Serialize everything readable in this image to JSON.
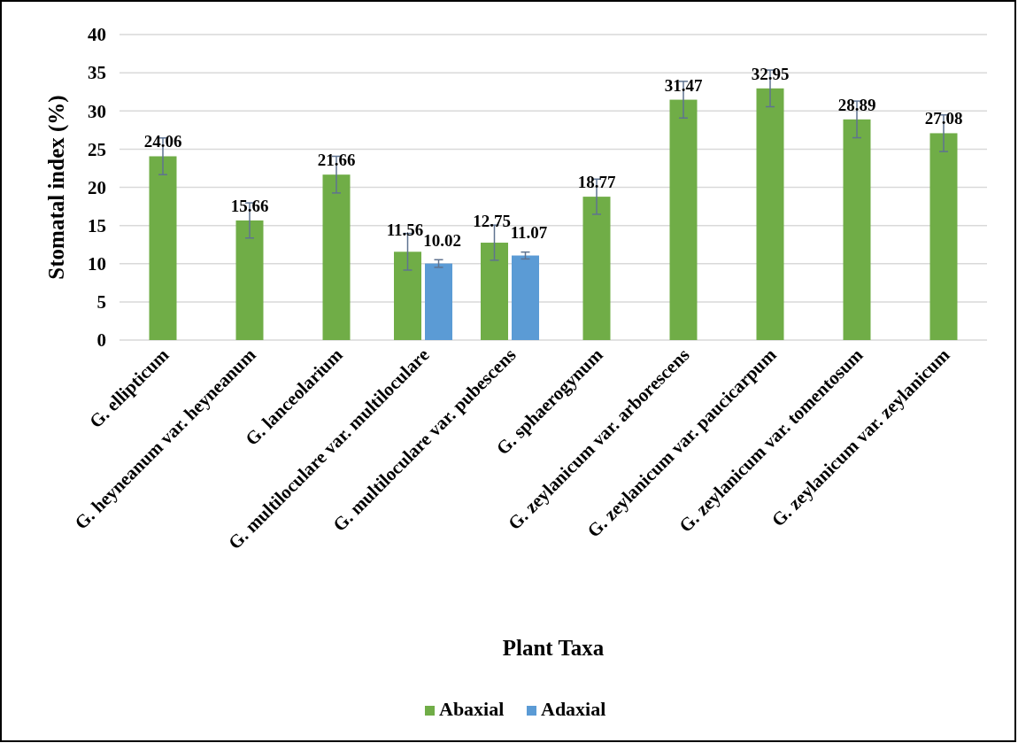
{
  "chart_data": {
    "type": "bar",
    "xlabel": "Plant Taxa",
    "ylabel": "Stomatal index (%)",
    "categories": [
      "G. ellipticum",
      "G. heyneanum var. heyneanum",
      "G. lanceolarium",
      "G. multiloculare var. multiloculare",
      "G. multiloculare var. pubescens",
      "G. sphaerogynum",
      "G. zeylanicum var. arborescens",
      "G. zeylanicum var. paucicarpum",
      "G. zeylanicum var. tomentosum",
      "G. zeylanicum var. zeylanicum"
    ],
    "series": [
      {
        "name": "Abaxial",
        "color": "#70ad47",
        "values": [
          24.06,
          15.66,
          21.66,
          11.56,
          12.75,
          18.77,
          31.47,
          32.95,
          28.89,
          27.08
        ],
        "errors": [
          2.4,
          2.3,
          2.4,
          2.4,
          2.3,
          2.3,
          2.4,
          2.4,
          2.4,
          2.4
        ]
      },
      {
        "name": "Adaxial",
        "color": "#5b9bd5",
        "values": [
          null,
          null,
          null,
          10.02,
          11.07,
          null,
          null,
          null,
          null,
          null
        ],
        "errors": [
          null,
          null,
          null,
          0.5,
          0.45,
          null,
          null,
          null,
          null,
          null
        ]
      }
    ],
    "ylim": [
      0,
      40
    ],
    "yticks": [
      0,
      5,
      10,
      15,
      20,
      25,
      30,
      35,
      40
    ],
    "grid": "y",
    "legend": "bottom",
    "data_labels": true
  }
}
